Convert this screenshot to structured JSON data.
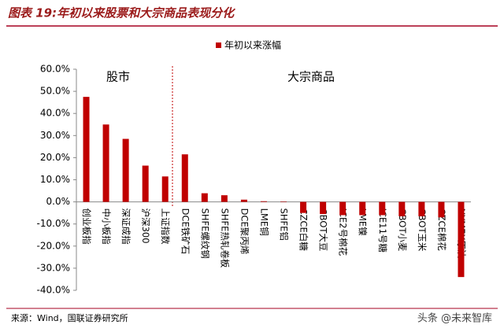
{
  "chart_data": {
    "type": "bar",
    "title": "图表 19:年初以来股票和大宗商品表现分化",
    "categories": [
      "创业板指",
      "中小板指",
      "深证成指",
      "沪深300",
      "上证指数",
      "DCE铁矿石",
      "SHFE螺纹钢",
      "SHFE热轧卷板",
      "DCE聚丙烯",
      "LME铜",
      "SHFE铝",
      "CZCE白糖",
      "CBOT大豆",
      "ICE2号棉花",
      "LME镍",
      "ICE11号糖",
      "CBOT小麦",
      "CBOT玉米",
      "CZCE棉花",
      "NYMEX原油"
    ],
    "series": [
      {
        "name": "年初以来涨幅",
        "color": "#c00000",
        "values": [
          47.5,
          35,
          28.5,
          16.4,
          11.5,
          21.5,
          3.9,
          3,
          1,
          0.3,
          0.2,
          -5,
          -5.5,
          -6,
          -6,
          -6,
          -6.5,
          -6.5,
          -7,
          -34
        ]
      }
    ],
    "ylim": [
      -40,
      60
    ],
    "yticks": [
      {
        "value": -40,
        "label": "-40.0%"
      },
      {
        "value": -30,
        "label": "-30.0%"
      },
      {
        "value": -20,
        "label": "-20.0%"
      },
      {
        "value": -10,
        "label": "-10.0%"
      },
      {
        "value": 0,
        "label": "0.0%"
      },
      {
        "value": 10,
        "label": "10.0%"
      },
      {
        "value": 20,
        "label": "20.0%"
      },
      {
        "value": 30,
        "label": "30.0%"
      },
      {
        "value": 40,
        "label": "40.0%"
      },
      {
        "value": 50,
        "label": "50.0%"
      },
      {
        "value": 60,
        "label": "60.0%"
      }
    ],
    "grid": false,
    "annotations": [
      "股市",
      "大宗商品"
    ],
    "source": "来源：Wind，国联证券研究所",
    "watermark": "头条 @未来智库"
  }
}
